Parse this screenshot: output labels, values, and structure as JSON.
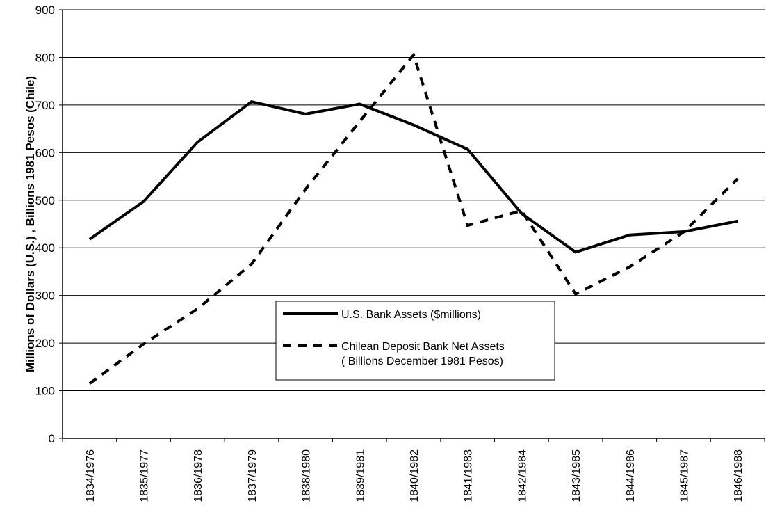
{
  "chart_data": {
    "type": "line",
    "title": "",
    "xlabel": "",
    "ylabel": "Millions of Dollars (U.S.) ,  Billions 1981 Pesos (Chile)",
    "ylim": [
      0,
      900
    ],
    "yticks": [
      0,
      100,
      200,
      300,
      400,
      500,
      600,
      700,
      800,
      900
    ],
    "grid": "horizontal",
    "legend_position": "center",
    "categories": [
      "1834/1976",
      "1835/1977",
      "1836/1978",
      "1837/1979",
      "1838/1980",
      "1839/1981",
      "1840/1982",
      "1841/1983",
      "1842/1984",
      "1843/1985",
      "1844/1986",
      "1845/1987",
      "1846/1988"
    ],
    "series": [
      {
        "name": "U.S. Bank Assets ($millions)",
        "legend_lines": [
          "U.S. Bank Assets ($millions)"
        ],
        "style": "solid",
        "color": "#000000",
        "values": [
          418,
          497,
          622,
          707,
          681,
          702,
          658,
          607,
          472,
          391,
          427,
          434,
          456
        ]
      },
      {
        "name": "Chilean Deposit Bank Net Assets ( Billions December 1981 Pesos)",
        "legend_lines": [
          "Chilean Deposit Bank Net Assets",
          "( Billions December 1981 Pesos)"
        ],
        "style": "dashed",
        "color": "#000000",
        "values": [
          115,
          198,
          272,
          366,
          523,
          665,
          805,
          447,
          478,
          303,
          360,
          433,
          545
        ]
      }
    ]
  }
}
